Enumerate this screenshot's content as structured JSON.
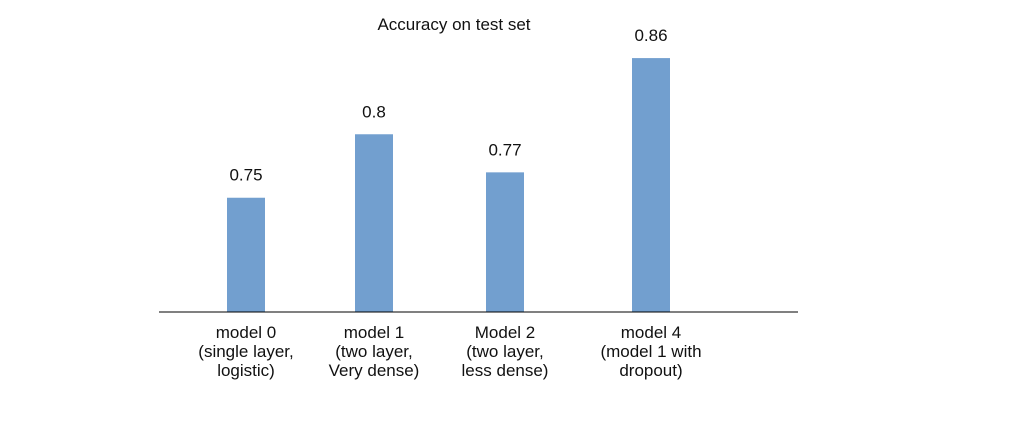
{
  "chart_data": {
    "type": "bar",
    "title": "Accuracy on test set",
    "xlabel": "",
    "ylabel": "",
    "categories": [
      [
        "model 0",
        "(single layer,",
        "logistic)"
      ],
      [
        "model 1",
        "(two layer,",
        "Very dense)"
      ],
      [
        "Model 2",
        "(two layer,",
        "less dense)"
      ],
      [
        "model 4",
        "(model 1 with",
        "dropout)"
      ]
    ],
    "values": [
      0.75,
      0.8,
      0.77,
      0.86
    ],
    "data_labels": [
      "0.75",
      "0.8",
      "0.77",
      "0.86"
    ],
    "ylim": [
      0.66,
      0.89
    ],
    "grid": false,
    "legend": "none",
    "bar_color": "#729fcf",
    "axis_color": "#000000"
  }
}
